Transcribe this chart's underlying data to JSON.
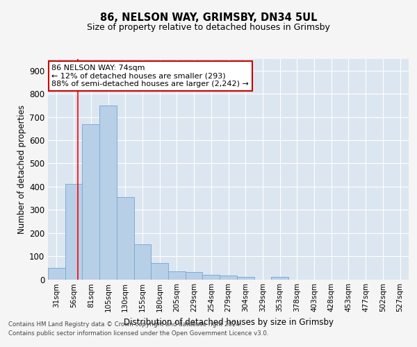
{
  "title1": "86, NELSON WAY, GRIMSBY, DN34 5UL",
  "title2": "Size of property relative to detached houses in Grimsby",
  "xlabel": "Distribution of detached houses by size in Grimsby",
  "ylabel": "Number of detached properties",
  "bar_values": [
    50,
    410,
    670,
    750,
    355,
    150,
    70,
    35,
    30,
    20,
    15,
    10,
    0,
    10,
    0,
    0,
    0,
    0,
    0,
    0,
    0
  ],
  "bar_labels": [
    "31sqm",
    "56sqm",
    "81sqm",
    "105sqm",
    "130sqm",
    "155sqm",
    "180sqm",
    "205sqm",
    "229sqm",
    "254sqm",
    "279sqm",
    "304sqm",
    "329sqm",
    "353sqm",
    "378sqm",
    "403sqm",
    "428sqm",
    "453sqm",
    "477sqm",
    "502sqm",
    "527sqm"
  ],
  "bar_color": "#b8cfe8",
  "bar_edge_color": "#7aadd4",
  "red_line_x": 1.5,
  "ylim": [
    0,
    950
  ],
  "yticks": [
    0,
    100,
    200,
    300,
    400,
    500,
    600,
    700,
    800,
    900
  ],
  "annotation_line1": "86 NELSON WAY: 74sqm",
  "annotation_line2": "← 12% of detached houses are smaller (293)",
  "annotation_line3": "88% of semi-detached houses are larger (2,242) →",
  "annotation_box_color": "#ffffff",
  "annotation_box_edge": "#cc0000",
  "footnote1": "Contains HM Land Registry data © Crown copyright and database right 2024.",
  "footnote2": "Contains public sector information licensed under the Open Government Licence v3.0.",
  "fig_facecolor": "#f5f5f5",
  "plot_background": "#dce6f0",
  "grid_color": "#ffffff"
}
